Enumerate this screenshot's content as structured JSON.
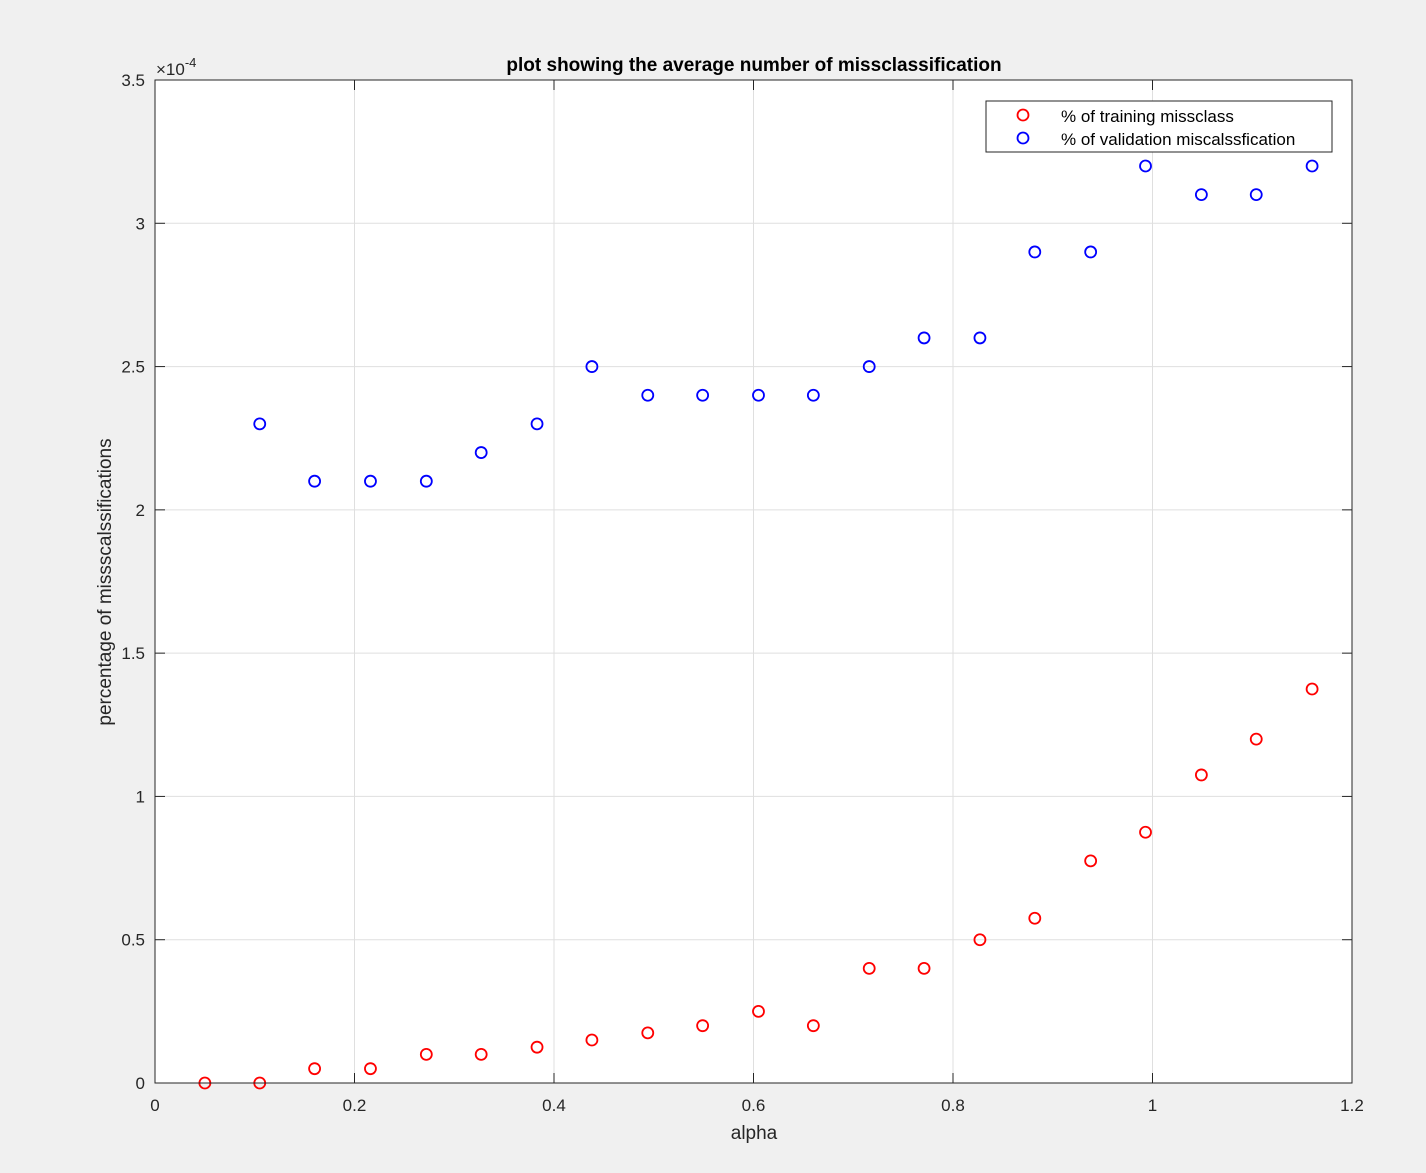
{
  "chart_data": {
    "type": "scatter",
    "title": "plot showing the average number of missclassification",
    "xlabel": "alpha",
    "ylabel": "percentage of missscalssifications",
    "xlim": [
      0,
      1.2
    ],
    "ylim": [
      0,
      3.5
    ],
    "exponent_label": "×10",
    "exponent_power": "-4",
    "x_ticks": [
      "0",
      "0.2",
      "0.4",
      "0.6",
      "0.8",
      "1",
      "1.2"
    ],
    "y_ticks": [
      "0",
      "0.5",
      "1",
      "1.5",
      "2",
      "2.5",
      "3",
      "3.5"
    ],
    "grid": true,
    "legend_position": "top-right",
    "x": [
      0.05,
      0.105,
      0.16,
      0.216,
      0.272,
      0.327,
      0.383,
      0.438,
      0.494,
      0.549,
      0.605,
      0.66,
      0.716,
      0.771,
      0.827,
      0.882,
      0.938,
      0.993,
      1.049,
      1.104,
      1.16
    ],
    "series": [
      {
        "name": "% of training missclass",
        "color": "#ff0000",
        "x": [
          0.05,
          0.105,
          0.16,
          0.216,
          0.272,
          0.327,
          0.383,
          0.438,
          0.494,
          0.549,
          0.605,
          0.66,
          0.716,
          0.771,
          0.827,
          0.882,
          0.938,
          0.993,
          1.049,
          1.104,
          1.16
        ],
        "values": [
          0,
          0,
          0.05,
          0.05,
          0.1,
          0.1,
          0.125,
          0.15,
          0.175,
          0.2,
          0.25,
          0.2,
          0.4,
          0.4,
          0.5,
          0.575,
          0.775,
          0.875,
          1.075,
          1.2,
          1.375
        ]
      },
      {
        "name": "% of validation miscalssfication",
        "color": "#0000ff",
        "x": [
          0.105,
          0.16,
          0.216,
          0.272,
          0.327,
          0.383,
          0.438,
          0.494,
          0.549,
          0.605,
          0.66,
          0.716,
          0.771,
          0.827,
          0.882,
          0.938,
          0.993,
          1.049,
          1.104,
          1.16
        ],
        "values": [
          2.3,
          2.1,
          2.1,
          2.1,
          2.2,
          2.3,
          2.5,
          2.4,
          2.4,
          2.4,
          2.4,
          2.5,
          2.6,
          2.6,
          2.9,
          2.9,
          3.2,
          3.1,
          3.1,
          3.2
        ]
      }
    ]
  }
}
